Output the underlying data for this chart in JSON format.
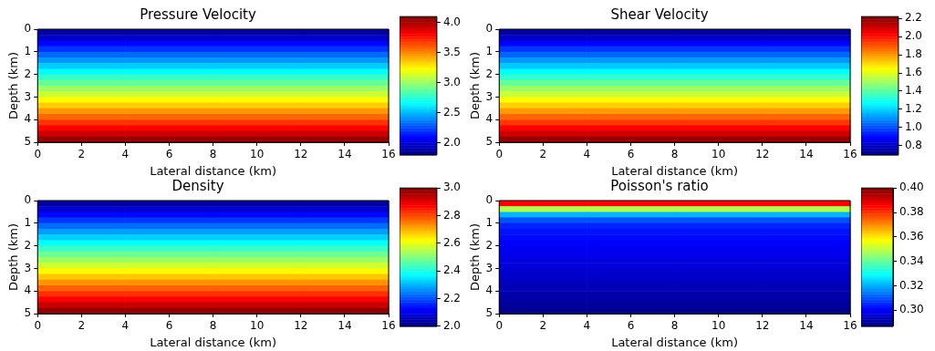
{
  "chart_data": [
    {
      "type": "heatmap",
      "title": "Pressure Velocity",
      "xlabel": "Lateral distance (km)",
      "ylabel": "Depth (km)",
      "xlim": [
        0,
        16
      ],
      "xticks": [
        0,
        2,
        4,
        6,
        8,
        10,
        12,
        14,
        16
      ],
      "ylim": [
        5,
        0
      ],
      "yticks": [
        0,
        1,
        2,
        3,
        4,
        5
      ],
      "clim": [
        1.8,
        4.1
      ],
      "cticks": [
        {
          "value": 2,
          "label": "2.0"
        },
        2.5,
        {
          "value": 3,
          "label": "3.0"
        },
        3.5,
        {
          "value": 4,
          "label": "4.0"
        }
      ],
      "cells": [
        [
          1.86,
          1.86,
          1.86,
          1.86
        ],
        [
          1.97,
          1.97,
          1.97,
          1.97
        ],
        [
          2.09,
          2.09,
          2.09,
          2.09
        ],
        [
          2.2,
          2.2,
          2.2,
          2.2
        ],
        [
          2.32,
          2.32,
          2.32,
          2.32
        ],
        [
          2.43,
          2.43,
          2.43,
          2.43
        ],
        [
          2.55,
          2.55,
          2.55,
          2.55
        ],
        [
          2.66,
          2.66,
          2.66,
          2.66
        ],
        [
          2.78,
          2.78,
          2.78,
          2.78
        ],
        [
          2.89,
          2.89,
          2.89,
          2.89
        ],
        [
          3.01,
          3.01,
          3.01,
          3.01
        ],
        [
          3.12,
          3.12,
          3.12,
          3.12
        ],
        [
          3.24,
          3.24,
          3.24,
          3.24
        ],
        [
          3.35,
          3.35,
          3.35,
          3.35
        ],
        [
          3.47,
          3.47,
          3.47,
          3.47
        ],
        [
          3.58,
          3.58,
          3.58,
          3.58
        ],
        [
          3.7,
          3.7,
          3.7,
          3.7
        ],
        [
          3.81,
          3.81,
          3.81,
          3.81
        ],
        [
          3.93,
          3.93,
          3.93,
          3.93
        ],
        [
          4.04,
          4.04,
          4.04,
          4.04
        ]
      ]
    },
    {
      "type": "heatmap",
      "title": "Shear Velocity",
      "xlabel": "Lateral distance (km)",
      "ylabel": "Depth (km)",
      "xlim": [
        0,
        16
      ],
      "xticks": [
        0,
        2,
        4,
        6,
        8,
        10,
        12,
        14,
        16
      ],
      "ylim": [
        5,
        0
      ],
      "yticks": [
        0,
        1,
        2,
        3,
        4,
        5
      ],
      "clim": [
        0.7,
        2.22
      ],
      "cticks": [
        0.8,
        {
          "value": 1,
          "label": "1.0"
        },
        1.2,
        1.4,
        1.6,
        1.8,
        {
          "value": 2,
          "label": "2.0"
        },
        2.2
      ],
      "cells": [
        [
          0.74,
          0.74,
          0.74,
          0.74
        ],
        [
          0.81,
          0.81,
          0.81,
          0.81
        ],
        [
          0.89,
          0.89,
          0.89,
          0.89
        ],
        [
          0.97,
          0.97,
          0.97,
          0.97
        ],
        [
          1.04,
          1.04,
          1.04,
          1.04
        ],
        [
          1.12,
          1.12,
          1.12,
          1.12
        ],
        [
          1.19,
          1.19,
          1.19,
          1.19
        ],
        [
          1.27,
          1.27,
          1.27,
          1.27
        ],
        [
          1.34,
          1.34,
          1.34,
          1.34
        ],
        [
          1.42,
          1.42,
          1.42,
          1.42
        ],
        [
          1.5,
          1.5,
          1.5,
          1.5
        ],
        [
          1.57,
          1.57,
          1.57,
          1.57
        ],
        [
          1.65,
          1.65,
          1.65,
          1.65
        ],
        [
          1.72,
          1.72,
          1.72,
          1.72
        ],
        [
          1.8,
          1.8,
          1.8,
          1.8
        ],
        [
          1.88,
          1.88,
          1.88,
          1.88
        ],
        [
          1.95,
          1.95,
          1.95,
          1.95
        ],
        [
          2.03,
          2.03,
          2.03,
          2.03
        ],
        [
          2.1,
          2.1,
          2.1,
          2.1
        ],
        [
          2.18,
          2.18,
          2.18,
          2.18
        ]
      ]
    },
    {
      "type": "heatmap",
      "title": "Density",
      "xlabel": "Lateral distance (km)",
      "ylabel": "Depth (km)",
      "xlim": [
        0,
        16
      ],
      "xticks": [
        0,
        2,
        4,
        6,
        8,
        10,
        12,
        14,
        16
      ],
      "ylim": [
        5,
        0
      ],
      "yticks": [
        0,
        1,
        2,
        3,
        4,
        5
      ],
      "clim": [
        2.0,
        3.0
      ],
      "cticks": [
        {
          "value": 2,
          "label": "2.0"
        },
        2.2,
        2.4,
        2.6,
        2.8,
        {
          "value": 3,
          "label": "3.0"
        }
      ],
      "cells": [
        [
          2.03,
          2.03,
          2.03,
          2.03
        ],
        [
          2.08,
          2.08,
          2.08,
          2.08
        ],
        [
          2.13,
          2.13,
          2.13,
          2.13
        ],
        [
          2.18,
          2.18,
          2.18,
          2.18
        ],
        [
          2.23,
          2.23,
          2.23,
          2.23
        ],
        [
          2.28,
          2.28,
          2.28,
          2.28
        ],
        [
          2.33,
          2.33,
          2.33,
          2.33
        ],
        [
          2.38,
          2.38,
          2.38,
          2.38
        ],
        [
          2.43,
          2.43,
          2.43,
          2.43
        ],
        [
          2.48,
          2.48,
          2.48,
          2.48
        ],
        [
          2.53,
          2.53,
          2.53,
          2.53
        ],
        [
          2.58,
          2.58,
          2.58,
          2.58
        ],
        [
          2.63,
          2.63,
          2.63,
          2.63
        ],
        [
          2.68,
          2.68,
          2.68,
          2.68
        ],
        [
          2.73,
          2.73,
          2.73,
          2.73
        ],
        [
          2.78,
          2.78,
          2.78,
          2.78
        ],
        [
          2.83,
          2.83,
          2.83,
          2.83
        ],
        [
          2.88,
          2.88,
          2.88,
          2.88
        ],
        [
          2.93,
          2.93,
          2.93,
          2.93
        ],
        [
          2.98,
          2.98,
          2.98,
          2.98
        ]
      ]
    },
    {
      "type": "heatmap",
      "title": "Poisson's ratio",
      "xlabel": "Lateral distance (km)",
      "ylabel": "Depth (km)",
      "xlim": [
        0,
        16
      ],
      "xticks": [
        0,
        2,
        4,
        6,
        8,
        10,
        12,
        14,
        16
      ],
      "ylim": [
        5,
        0
      ],
      "yticks": [
        0,
        1,
        2,
        3,
        4,
        5
      ],
      "clim": [
        0.287,
        0.4
      ],
      "cticks": [
        {
          "value": 0.3,
          "label": "0.30"
        },
        0.32,
        0.34,
        0.36,
        0.38,
        {
          "value": 0.4,
          "label": "0.40"
        }
      ],
      "cells": [
        [
          0.386,
          0.386,
          0.386,
          0.386
        ],
        [
          0.349,
          0.349,
          0.349,
          0.349
        ],
        [
          0.321,
          0.321,
          0.321,
          0.321
        ],
        [
          0.31,
          0.31,
          0.31,
          0.31
        ],
        [
          0.305,
          0.305,
          0.305,
          0.305
        ],
        [
          0.303,
          0.303,
          0.303,
          0.303
        ],
        [
          0.302,
          0.302,
          0.302,
          0.302
        ],
        [
          0.301,
          0.301,
          0.301,
          0.301
        ],
        [
          0.3,
          0.3,
          0.3,
          0.3
        ],
        [
          0.299,
          0.299,
          0.299,
          0.299
        ],
        [
          0.298,
          0.298,
          0.298,
          0.298
        ],
        [
          0.297,
          0.297,
          0.297,
          0.297
        ],
        [
          0.296,
          0.296,
          0.296,
          0.296
        ],
        [
          0.295,
          0.295,
          0.295,
          0.295
        ],
        [
          0.294,
          0.294,
          0.294,
          0.294
        ],
        [
          0.293,
          0.293,
          0.293,
          0.293
        ],
        [
          0.292,
          0.292,
          0.292,
          0.292
        ],
        [
          0.291,
          0.291,
          0.291,
          0.291
        ],
        [
          0.29,
          0.29,
          0.29,
          0.29
        ],
        [
          0.289,
          0.289,
          0.289,
          0.289
        ]
      ]
    }
  ]
}
